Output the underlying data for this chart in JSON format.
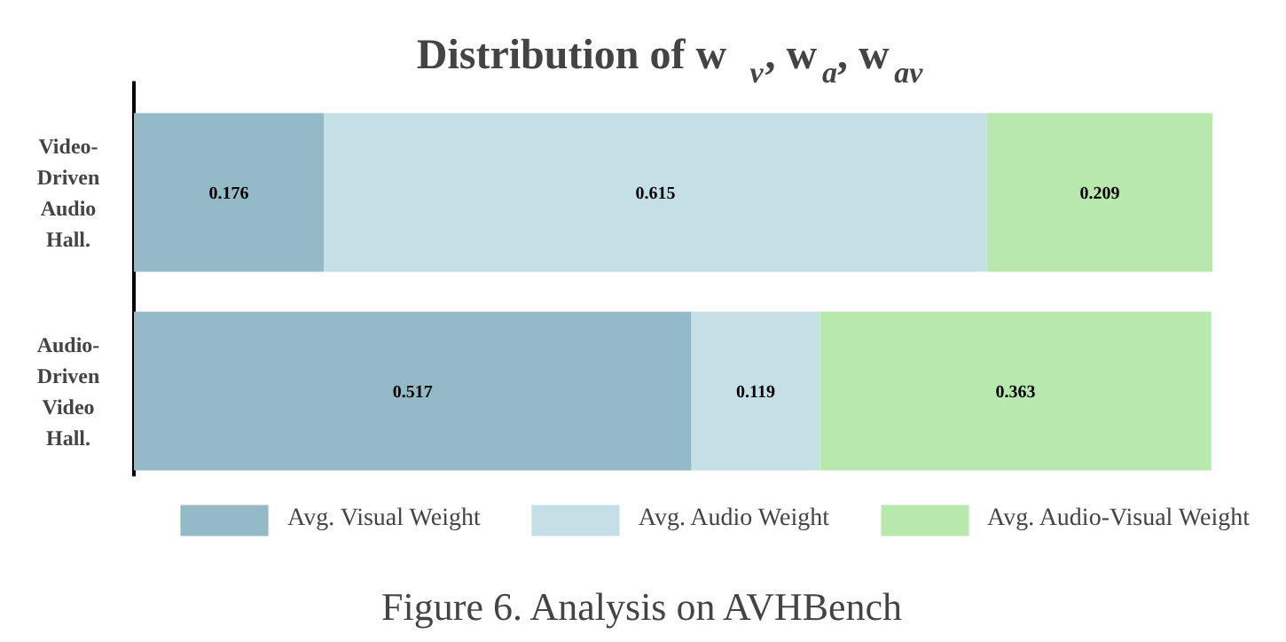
{
  "chart_data": {
    "type": "bar",
    "orientation": "horizontal",
    "stacked": true,
    "title": "Distribution of w$_{v}$, w$_{a}$, w$_{av}$",
    "categories": [
      "Video-Driven Audio Hall.",
      "Audio-Driven Video Hall."
    ],
    "series": [
      {
        "name": "Avg. Visual Weight",
        "color": "#93bac6",
        "values": [
          0.176,
          0.517
        ]
      },
      {
        "name": "Avg. Audio Weight",
        "color": "#c5dfe6",
        "values": [
          0.615,
          0.119
        ]
      },
      {
        "name": "Avg. Audio-Visual Weight",
        "color": "#b9e8ae",
        "values": [
          0.209,
          0.363
        ]
      }
    ],
    "data_labels": true,
    "legend": "bottom",
    "grid": false,
    "annotations": [
      "Figure 6. Analysis on AVHBench"
    ]
  }
}
